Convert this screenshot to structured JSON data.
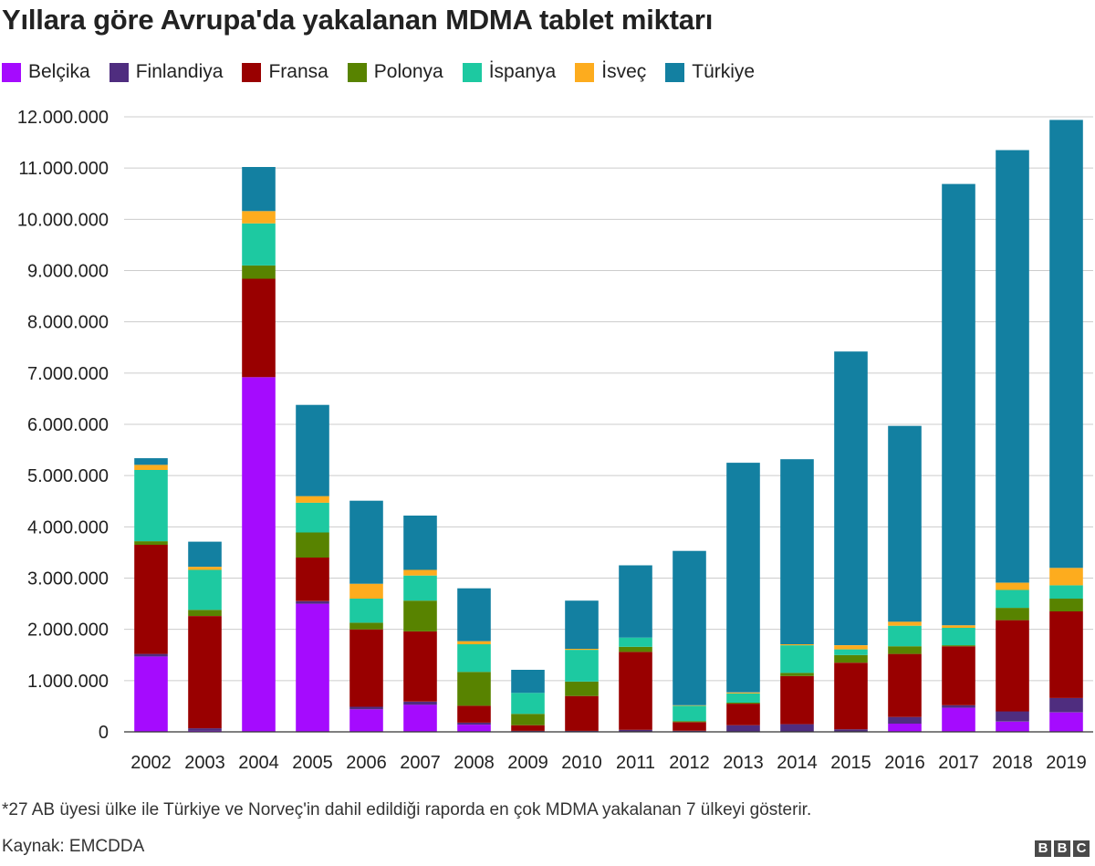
{
  "header": {
    "title": "Yıllara göre Avrupa'da yakalanan MDMA tablet miktarı"
  },
  "footer": {
    "note": "*27 AB üyesi ülke ile Türkiye ve Norveç'in dahil edildiği raporda en çok MDMA yakalanan 7 ülkeyi gösterir.",
    "source": "Kaynak: EMCDDA",
    "logo": [
      "B",
      "B",
      "C"
    ]
  },
  "chart_data": {
    "type": "bar",
    "stacked": true,
    "title": "Yıllara göre Avrupa'da yakalanan MDMA tablet miktarı",
    "xlabel": "",
    "ylabel": "",
    "ylim": [
      0,
      12000000
    ],
    "yticks": [
      0,
      1000000,
      2000000,
      3000000,
      4000000,
      5000000,
      6000000,
      7000000,
      8000000,
      9000000,
      10000000,
      11000000,
      12000000
    ],
    "ytick_labels": [
      "0",
      "1.000.000",
      "2.000.000",
      "3.000.000",
      "4.000.000",
      "5.000.000",
      "6.000.000",
      "7.000.000",
      "8.000.000",
      "9.000.000",
      "10.000.000",
      "11.000.000",
      "12.000.000"
    ],
    "grid": true,
    "legend_position": "top-left",
    "categories": [
      "2002",
      "2003",
      "2004",
      "2005",
      "2006",
      "2007",
      "2008",
      "2009",
      "2010",
      "2011",
      "2012",
      "2013",
      "2014",
      "2015",
      "2016",
      "2017",
      "2018",
      "2019"
    ],
    "series": [
      {
        "name": "Belçika",
        "color": "#a50bfe",
        "values": [
          1470000,
          20000,
          6920000,
          2500000,
          440000,
          530000,
          140000,
          0,
          0,
          0,
          0,
          0,
          0,
          0,
          160000,
          470000,
          200000,
          380000
        ]
      },
      {
        "name": "Finlandiya",
        "color": "#4f2d7f",
        "values": [
          50000,
          50000,
          0,
          50000,
          50000,
          60000,
          40000,
          20000,
          20000,
          40000,
          20000,
          130000,
          150000,
          50000,
          130000,
          50000,
          200000,
          280000
        ]
      },
      {
        "name": "Fransa",
        "color": "#990000",
        "values": [
          2130000,
          2190000,
          1920000,
          850000,
          1510000,
          1370000,
          330000,
          110000,
          680000,
          1520000,
          170000,
          420000,
          940000,
          1300000,
          1230000,
          1150000,
          1780000,
          1690000
        ]
      },
      {
        "name": "Polonya",
        "color": "#588300",
        "values": [
          70000,
          120000,
          260000,
          490000,
          130000,
          600000,
          660000,
          220000,
          280000,
          100000,
          20000,
          20000,
          60000,
          150000,
          150000,
          20000,
          240000,
          250000
        ]
      },
      {
        "name": "İspanya",
        "color": "#1dc9a1",
        "values": [
          1390000,
          780000,
          820000,
          580000,
          470000,
          490000,
          540000,
          410000,
          620000,
          180000,
          300000,
          180000,
          540000,
          110000,
          400000,
          340000,
          350000,
          260000
        ]
      },
      {
        "name": "İsveç",
        "color": "#fdac1e",
        "values": [
          100000,
          60000,
          240000,
          130000,
          290000,
          110000,
          60000,
          0,
          20000,
          0,
          10000,
          20000,
          20000,
          80000,
          80000,
          50000,
          140000,
          340000
        ]
      },
      {
        "name": "Türkiye",
        "color": "#1380a1",
        "values": [
          130000,
          490000,
          860000,
          1780000,
          1620000,
          1060000,
          1030000,
          450000,
          940000,
          1410000,
          3010000,
          4480000,
          3610000,
          5730000,
          3820000,
          8610000,
          8440000,
          8740000
        ]
      }
    ]
  }
}
